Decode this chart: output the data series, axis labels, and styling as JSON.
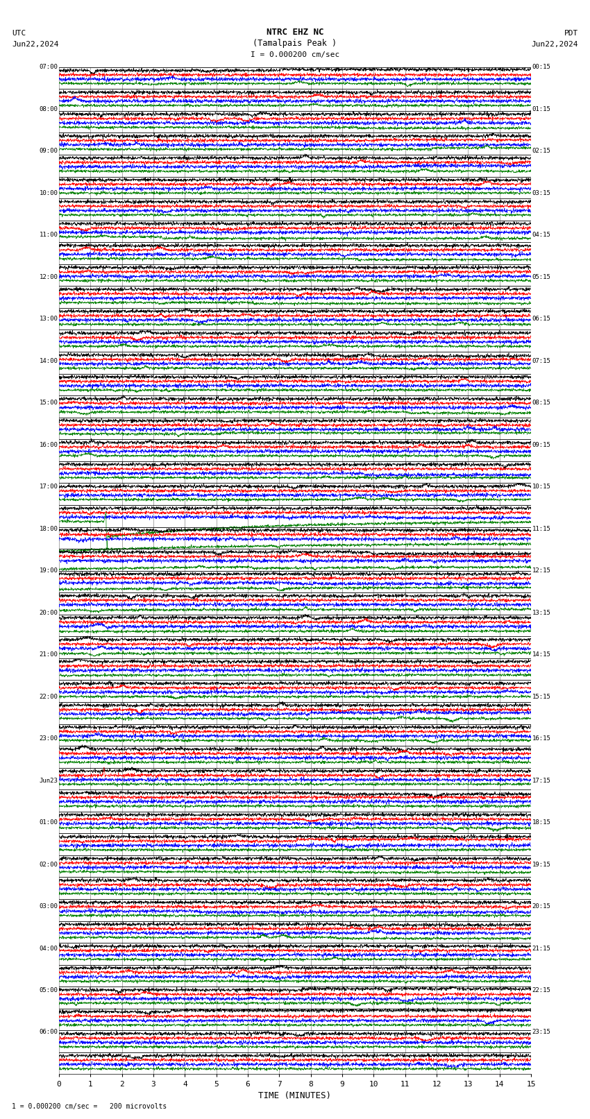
{
  "title_line1": "NTRC EHZ NC",
  "title_line2": "(Tamalpais Peak )",
  "scale_label": "I = 0.000200 cm/sec",
  "left_header1": "UTC",
  "left_header2": "Jun22,2024",
  "right_header1": "PDT",
  "right_header2": "Jun22,2024",
  "xlabel": "TIME (MINUTES)",
  "bottom_note": "1 = 0.000200 cm/sec =   200 microvolts",
  "fig_width": 8.5,
  "fig_height": 16.13,
  "bg_color": "#ffffff",
  "row_line_color": "#000000",
  "grid_color": "#aaaaaa",
  "line_colors": [
    "#000000",
    "#ff0000",
    "#0000ff",
    "#008000"
  ],
  "num_rows": 46,
  "x_min": 0,
  "x_max": 15,
  "x_ticks": [
    0,
    1,
    2,
    3,
    4,
    5,
    6,
    7,
    8,
    9,
    10,
    11,
    12,
    13,
    14,
    15
  ],
  "left_times_hourly": [
    "07:00",
    "08:00",
    "09:00",
    "10:00",
    "11:00",
    "12:00",
    "13:00",
    "14:00",
    "15:00",
    "16:00",
    "17:00",
    "18:00",
    "19:00",
    "20:00",
    "21:00",
    "22:00",
    "23:00",
    "Jun23\n00:00",
    "01:00",
    "02:00",
    "03:00",
    "04:00",
    "05:00",
    "06:00"
  ],
  "right_times_hourly": [
    "00:15",
    "01:15",
    "02:15",
    "03:15",
    "04:15",
    "05:15",
    "06:15",
    "07:15",
    "08:15",
    "09:15",
    "10:15",
    "11:15",
    "12:15",
    "13:15",
    "14:15",
    "15:15",
    "16:15",
    "17:15",
    "18:15",
    "19:15",
    "20:15",
    "21:15",
    "22:15",
    "23:15"
  ]
}
